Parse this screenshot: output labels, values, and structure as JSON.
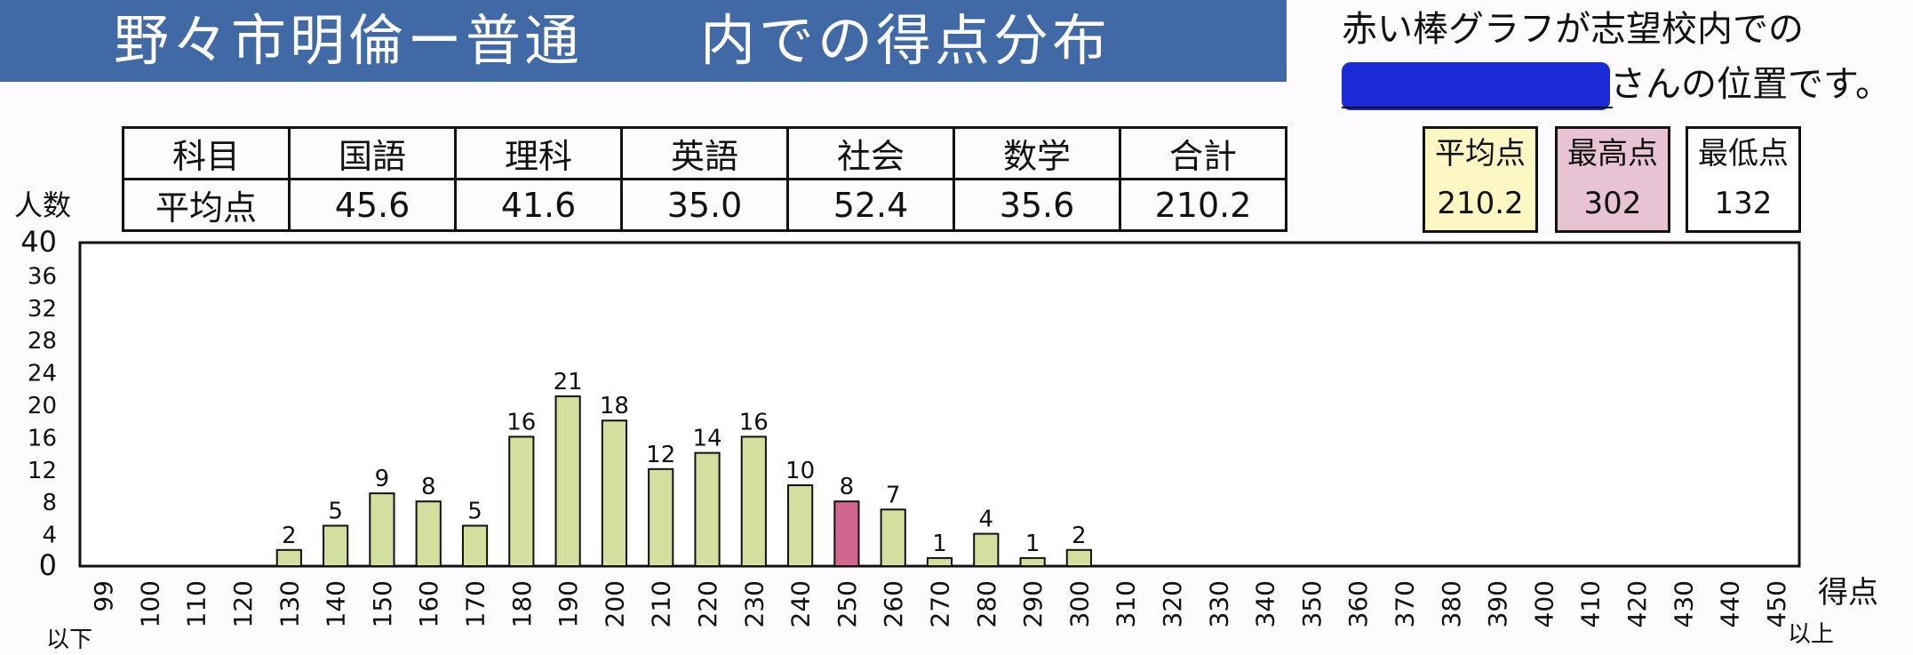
{
  "banner": {
    "title": "野々市明倫ー普通　　内での得点分布"
  },
  "note": {
    "line1": "赤い棒グラフが志望校内での",
    "line2_suffix": "さんの位置です。"
  },
  "score_table": {
    "header": [
      "科目",
      "国語",
      "理科",
      "英語",
      "社会",
      "数学",
      "合計"
    ],
    "values": [
      "平均点",
      "45.6",
      "41.6",
      "35.0",
      "52.4",
      "35.6",
      "210.2"
    ]
  },
  "stats": [
    {
      "label": "平均点",
      "value": "210.2",
      "color": "#fdf7c3"
    },
    {
      "label": "最高点",
      "value": "302",
      "color": "#e8c3d3"
    },
    {
      "label": "最低点",
      "value": "132",
      "color": "#ffffff"
    }
  ],
  "chart_data": {
    "type": "bar",
    "ylabel": "人数",
    "xlabel": "得点",
    "ylim": [
      0,
      40
    ],
    "yticks": [
      0,
      4,
      8,
      12,
      16,
      20,
      24,
      28,
      32,
      36,
      40
    ],
    "categories": [
      "99",
      "100",
      "110",
      "120",
      "130",
      "140",
      "150",
      "160",
      "170",
      "180",
      "190",
      "200",
      "210",
      "220",
      "230",
      "240",
      "250",
      "260",
      "270",
      "280",
      "290",
      "300",
      "310",
      "320",
      "330",
      "340",
      "350",
      "360",
      "370",
      "380",
      "390",
      "400",
      "410",
      "420",
      "430",
      "440",
      "450"
    ],
    "values": [
      0,
      0,
      0,
      0,
      2,
      5,
      9,
      8,
      5,
      16,
      21,
      18,
      12,
      14,
      16,
      10,
      8,
      7,
      1,
      4,
      1,
      2,
      0,
      0,
      0,
      0,
      0,
      0,
      0,
      0,
      0,
      0,
      0,
      0,
      0,
      0,
      0
    ],
    "highlight_category": "250",
    "bar_color": "#d3df9f",
    "highlight_color": "#d16690",
    "below_label": "以下",
    "above_label": "以上"
  }
}
